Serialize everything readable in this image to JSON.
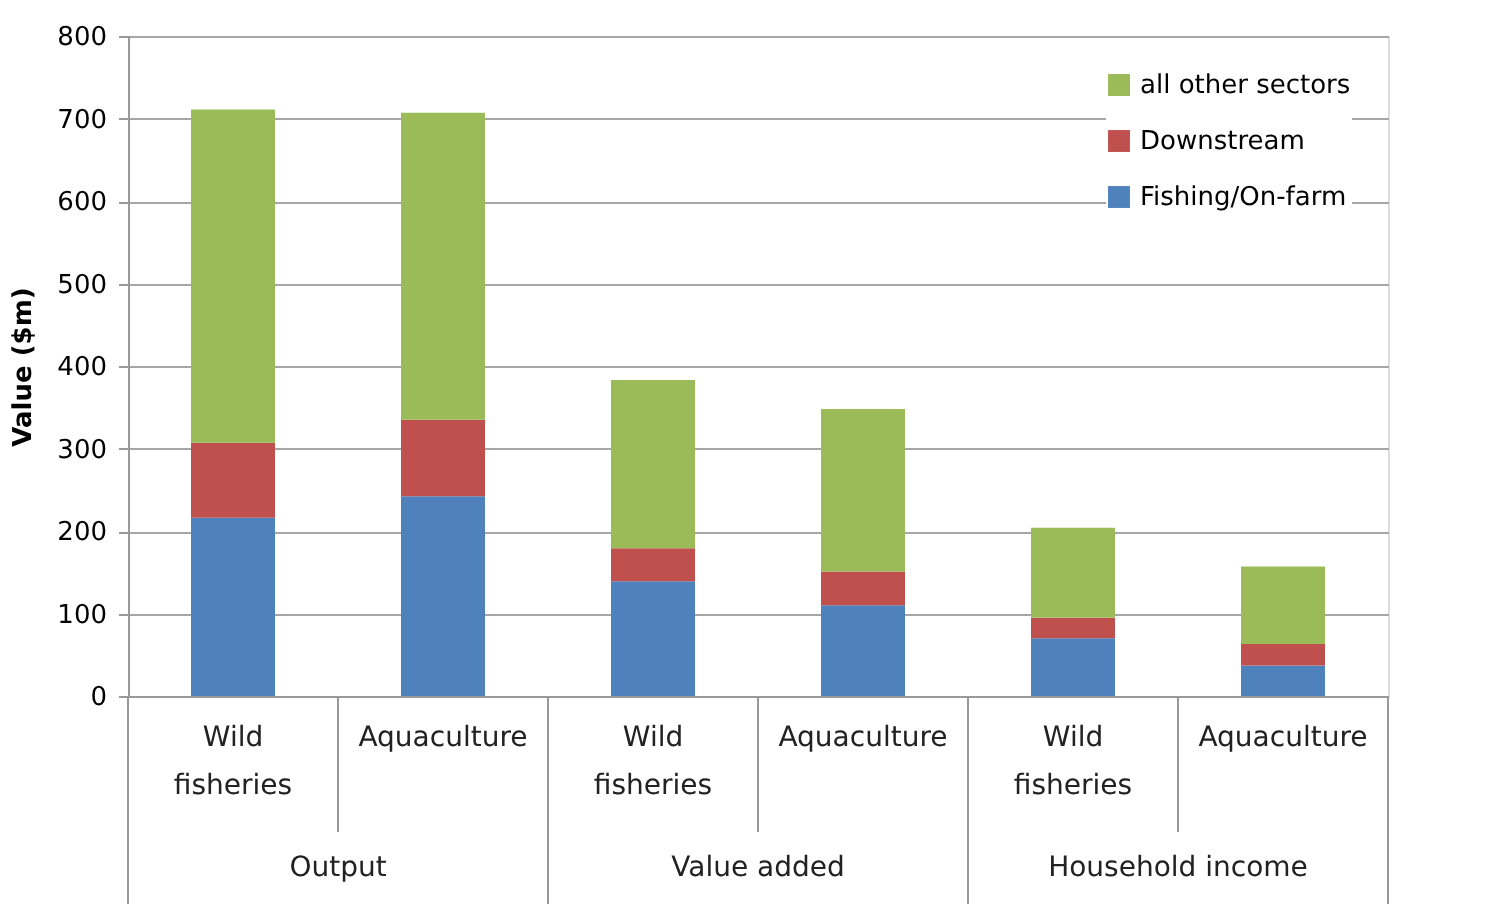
{
  "chart_data": {
    "type": "bar",
    "stacked": true,
    "ylabel": "Value ($m)",
    "categories": [
      "Wild fisheries",
      "Aquaculture",
      "Wild fisheries",
      "Aquaculture",
      "Wild fisheries",
      "Aquaculture"
    ],
    "annotations": [
      "Output",
      "Value added",
      "Household income"
    ],
    "series": [
      {
        "name": "Fishing/On-farm",
        "color": "#4f81bd",
        "values": [
          216,
          242,
          139,
          110,
          70,
          37
        ]
      },
      {
        "name": "Downstream",
        "color": "#c0504d",
        "values": [
          91,
          93,
          40,
          41,
          25,
          26
        ]
      },
      {
        "name": "all other sectors",
        "color": "#9bbb59",
        "values": [
          404,
          372,
          204,
          197,
          109,
          94
        ]
      }
    ],
    "ylim": [
      0,
      800
    ],
    "yticks": [
      0,
      100,
      200,
      300,
      400,
      500,
      600,
      700,
      800
    ],
    "grid": "y",
    "legend": "top right"
  }
}
